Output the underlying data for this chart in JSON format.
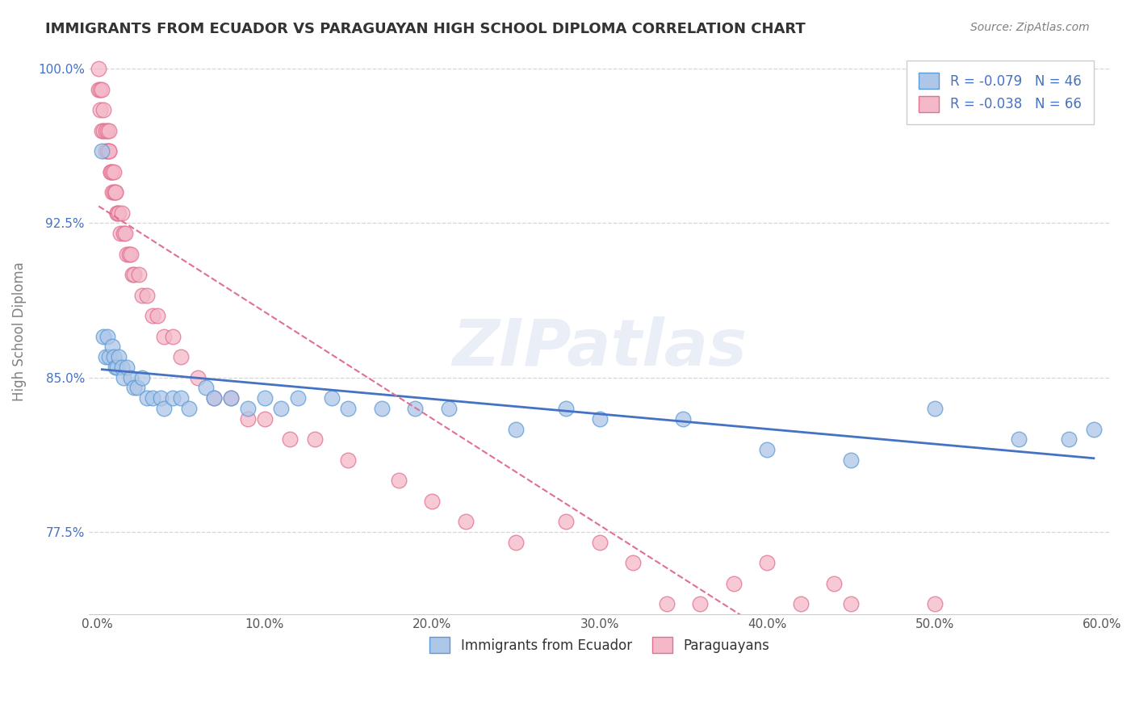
{
  "title": "IMMIGRANTS FROM ECUADOR VS PARAGUAYAN HIGH SCHOOL DIPLOMA CORRELATION CHART",
  "source_text": "Source: ZipAtlas.com",
  "ylabel": "High School Diploma",
  "xlim": [
    -0.005,
    0.605
  ],
  "ylim": [
    0.735,
    1.01
  ],
  "xticks": [
    0.0,
    0.1,
    0.2,
    0.3,
    0.4,
    0.5,
    0.6
  ],
  "xtick_labels": [
    "0.0%",
    "10.0%",
    "20.0%",
    "30.0%",
    "40.0%",
    "50.0%",
    "60.0%"
  ],
  "yticks": [
    0.775,
    0.85,
    0.925,
    1.0
  ],
  "ytick_labels": [
    "77.5%",
    "85.0%",
    "92.5%",
    "100.0%"
  ],
  "watermark": "ZIPatlas",
  "ecuador_color": "#aec6e8",
  "ecuador_edge_color": "#5b9bd5",
  "paraguayan_color": "#f4b8c8",
  "paraguayan_edge_color": "#e07090",
  "ecuador_trend_color": "#4472c4",
  "paraguayan_trend_color": "#e07090",
  "ecuador_x": [
    0.003,
    0.004,
    0.005,
    0.006,
    0.007,
    0.009,
    0.01,
    0.011,
    0.012,
    0.013,
    0.015,
    0.016,
    0.018,
    0.02,
    0.022,
    0.024,
    0.027,
    0.03,
    0.033,
    0.038,
    0.04,
    0.045,
    0.05,
    0.055,
    0.065,
    0.07,
    0.08,
    0.09,
    0.1,
    0.11,
    0.12,
    0.14,
    0.15,
    0.17,
    0.19,
    0.21,
    0.25,
    0.28,
    0.3,
    0.35,
    0.4,
    0.45,
    0.5,
    0.55,
    0.58,
    0.595
  ],
  "ecuador_y": [
    0.96,
    0.87,
    0.86,
    0.87,
    0.86,
    0.865,
    0.86,
    0.855,
    0.855,
    0.86,
    0.855,
    0.85,
    0.855,
    0.85,
    0.845,
    0.845,
    0.85,
    0.84,
    0.84,
    0.84,
    0.835,
    0.84,
    0.84,
    0.835,
    0.845,
    0.84,
    0.84,
    0.835,
    0.84,
    0.835,
    0.84,
    0.84,
    0.835,
    0.835,
    0.835,
    0.835,
    0.825,
    0.835,
    0.83,
    0.83,
    0.815,
    0.81,
    0.835,
    0.82,
    0.82,
    0.825
  ],
  "paraguayan_x": [
    0.001,
    0.001,
    0.002,
    0.002,
    0.003,
    0.003,
    0.004,
    0.004,
    0.005,
    0.005,
    0.006,
    0.006,
    0.007,
    0.007,
    0.007,
    0.008,
    0.008,
    0.009,
    0.009,
    0.01,
    0.01,
    0.011,
    0.011,
    0.012,
    0.012,
    0.013,
    0.014,
    0.015,
    0.016,
    0.017,
    0.018,
    0.019,
    0.02,
    0.021,
    0.022,
    0.025,
    0.027,
    0.03,
    0.033,
    0.036,
    0.04,
    0.045,
    0.05,
    0.06,
    0.07,
    0.08,
    0.09,
    0.1,
    0.115,
    0.13,
    0.15,
    0.18,
    0.2,
    0.22,
    0.25,
    0.28,
    0.3,
    0.32,
    0.34,
    0.36,
    0.38,
    0.4,
    0.42,
    0.44,
    0.45,
    0.5
  ],
  "paraguayan_y": [
    1.0,
    0.99,
    0.99,
    0.98,
    0.99,
    0.97,
    0.98,
    0.97,
    0.97,
    0.96,
    0.97,
    0.96,
    0.97,
    0.96,
    0.96,
    0.95,
    0.95,
    0.95,
    0.94,
    0.95,
    0.94,
    0.94,
    0.94,
    0.93,
    0.93,
    0.93,
    0.92,
    0.93,
    0.92,
    0.92,
    0.91,
    0.91,
    0.91,
    0.9,
    0.9,
    0.9,
    0.89,
    0.89,
    0.88,
    0.88,
    0.87,
    0.87,
    0.86,
    0.85,
    0.84,
    0.84,
    0.83,
    0.83,
    0.82,
    0.82,
    0.81,
    0.8,
    0.79,
    0.78,
    0.77,
    0.78,
    0.77,
    0.76,
    0.74,
    0.74,
    0.75,
    0.76,
    0.74,
    0.75,
    0.74,
    0.74
  ]
}
